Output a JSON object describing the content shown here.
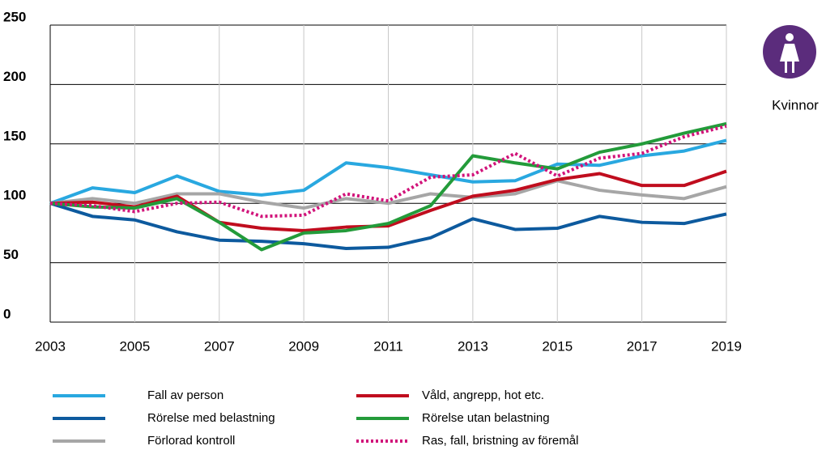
{
  "chart_data": {
    "type": "line",
    "badge": "Kvinnor",
    "x": [
      2003,
      2004,
      2005,
      2006,
      2007,
      2008,
      2009,
      2010,
      2011,
      2012,
      2013,
      2014,
      2015,
      2016,
      2017,
      2018,
      2019
    ],
    "xlim": [
      2003,
      2019
    ],
    "xticks": [
      2003,
      2005,
      2007,
      2009,
      2011,
      2013,
      2015,
      2017,
      2019
    ],
    "ylim": [
      0,
      250
    ],
    "yticks": [
      0,
      50,
      100,
      150,
      200,
      250
    ],
    "grid": true,
    "series": [
      {
        "name": "Fall av person",
        "color": "#29a8e0",
        "style": "solid",
        "values": [
          100,
          113,
          109,
          123,
          110,
          107,
          111,
          134,
          130,
          124,
          118,
          119,
          133,
          132,
          140,
          144,
          153
        ]
      },
      {
        "name": "Rörelse med belastning",
        "color": "#0d5a9e",
        "style": "solid",
        "values": [
          100,
          89,
          86,
          76,
          69,
          68,
          66,
          62,
          63,
          71,
          87,
          78,
          79,
          89,
          84,
          83,
          91
        ]
      },
      {
        "name": "Förlorad kontroll",
        "color": "#a6a6a6",
        "style": "solid",
        "values": [
          100,
          104,
          100,
          108,
          108,
          101,
          96,
          104,
          100,
          108,
          105,
          108,
          119,
          111,
          107,
          104,
          114
        ]
      },
      {
        "name": "Våld, angrepp, hot etc.",
        "color": "#c00d1e",
        "style": "solid",
        "values": [
          100,
          101,
          97,
          106,
          84,
          79,
          77,
          80,
          81,
          94,
          106,
          111,
          120,
          125,
          115,
          115,
          127
        ]
      },
      {
        "name": "Rörelse utan belastning",
        "color": "#239b3a",
        "style": "solid",
        "values": [
          100,
          97,
          96,
          104,
          84,
          61,
          75,
          77,
          83,
          98,
          140,
          134,
          129,
          143,
          150,
          159,
          167
        ]
      },
      {
        "name": "Ras, fall, bristning av föremål",
        "color": "#d1137a",
        "style": "dotted",
        "values": [
          100,
          98,
          93,
          100,
          101,
          89,
          90,
          108,
          102,
          122,
          124,
          142,
          123,
          138,
          142,
          156,
          165
        ]
      }
    ]
  }
}
